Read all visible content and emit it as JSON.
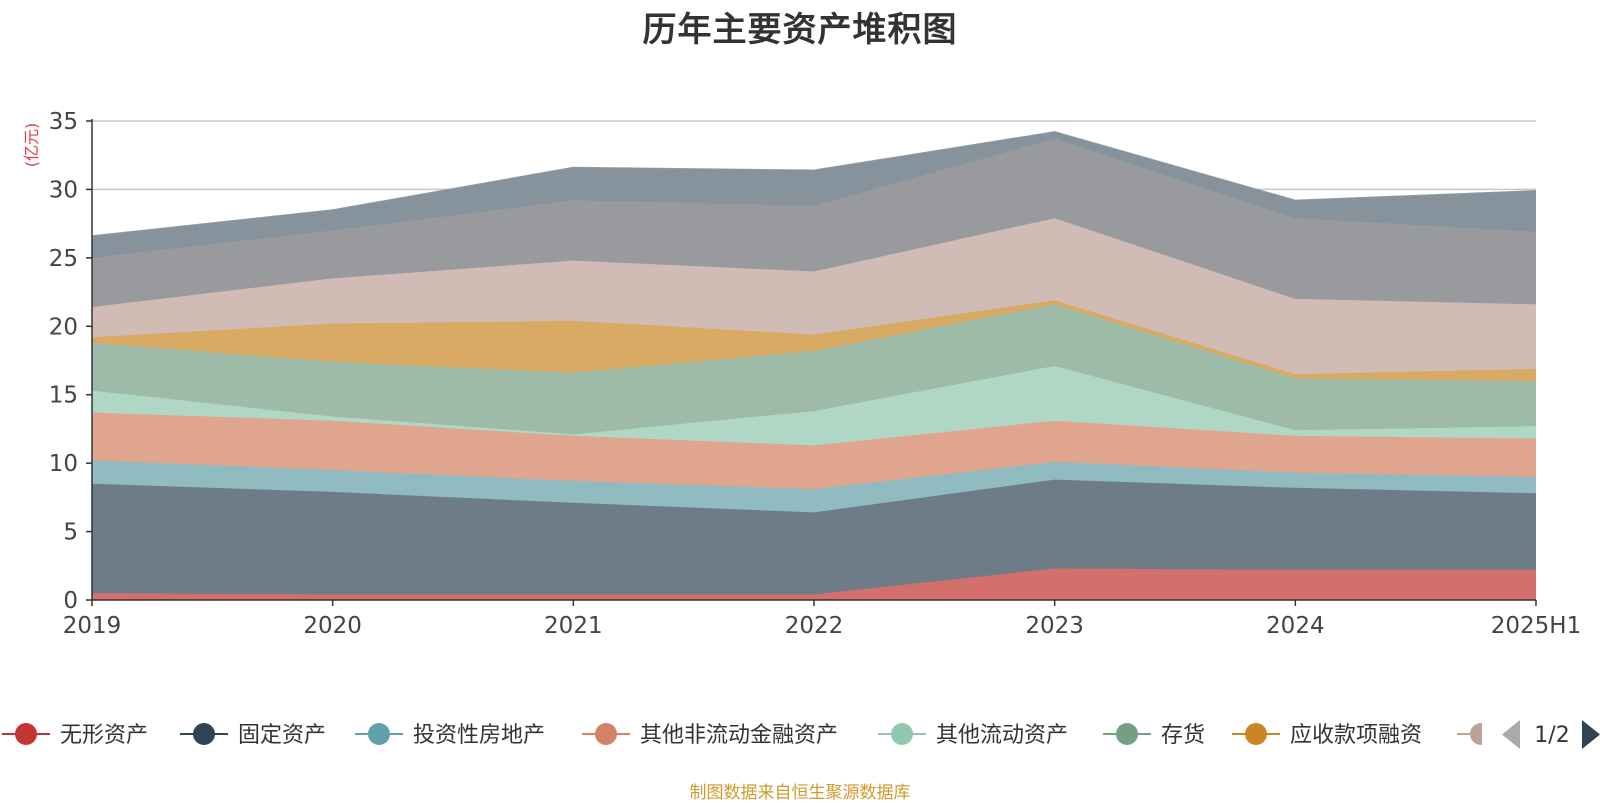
{
  "chart_data": {
    "type": "area",
    "stacked": true,
    "title": "历年主要资产堆积图",
    "ylabel": "(亿元)",
    "xlabel": "",
    "categories": [
      "2019",
      "2020",
      "2021",
      "2022",
      "2023",
      "2024",
      "2025H1"
    ],
    "ylim": [
      0,
      35
    ],
    "yticks": [
      0,
      5,
      10,
      15,
      20,
      25,
      30,
      35
    ],
    "grid": true,
    "legend_position": "bottom",
    "series": [
      {
        "name": "无形资产",
        "color": "#c23531",
        "fill": "#d4706c",
        "values": [
          0.5,
          0.4,
          0.4,
          0.4,
          2.3,
          2.2,
          2.2
        ]
      },
      {
        "name": "固定资产",
        "color": "#2f4554",
        "fill": "#6d7c87",
        "values": [
          8.0,
          7.5,
          6.7,
          6.0,
          6.5,
          6.0,
          5.6
        ]
      },
      {
        "name": "投资性房地产",
        "color": "#61a0a8",
        "fill": "#8fbbc1",
        "values": [
          1.7,
          1.6,
          1.6,
          1.7,
          1.3,
          1.1,
          1.2
        ]
      },
      {
        "name": "其他非流动金融资产",
        "color": "#d48265",
        "fill": "#e0a58f",
        "values": [
          3.5,
          3.6,
          3.3,
          3.2,
          3.0,
          2.7,
          2.8
        ]
      },
      {
        "name": "其他流动资产",
        "color": "#91c7ae",
        "fill": "#b0d7c5",
        "values": [
          1.6,
          0.3,
          0.1,
          2.5,
          4.0,
          0.4,
          0.9
        ]
      },
      {
        "name": "存货",
        "color": "#749f83",
        "fill": "#9dbba7",
        "values": [
          3.5,
          4.0,
          4.5,
          4.4,
          4.5,
          3.8,
          3.3
        ]
      },
      {
        "name": "应收款项融资",
        "color": "#ca8622",
        "fill": "#d9aa63",
        "values": [
          0.4,
          2.8,
          3.8,
          1.2,
          0.3,
          0.3,
          0.9
        ]
      },
      {
        "name": "",
        "color": "#bda29a",
        "fill": "#d0bbb5",
        "values": [
          2.2,
          3.3,
          4.4,
          4.6,
          6.0,
          5.5,
          4.7
        ]
      },
      {
        "name": "",
        "color": "#6e7074",
        "fill": "#999a9e",
        "values": [
          3.6,
          3.5,
          4.4,
          4.8,
          5.8,
          5.9,
          5.3
        ]
      },
      {
        "name": "",
        "color": "#546570",
        "fill": "#86939c",
        "values": [
          1.6,
          1.5,
          2.4,
          2.6,
          0.5,
          1.3,
          3.0
        ]
      }
    ]
  },
  "legend": {
    "pager": "1/2",
    "partial_color": "#bda29a"
  },
  "footer": {
    "source": "制图数据来自恒生聚源数据库"
  }
}
